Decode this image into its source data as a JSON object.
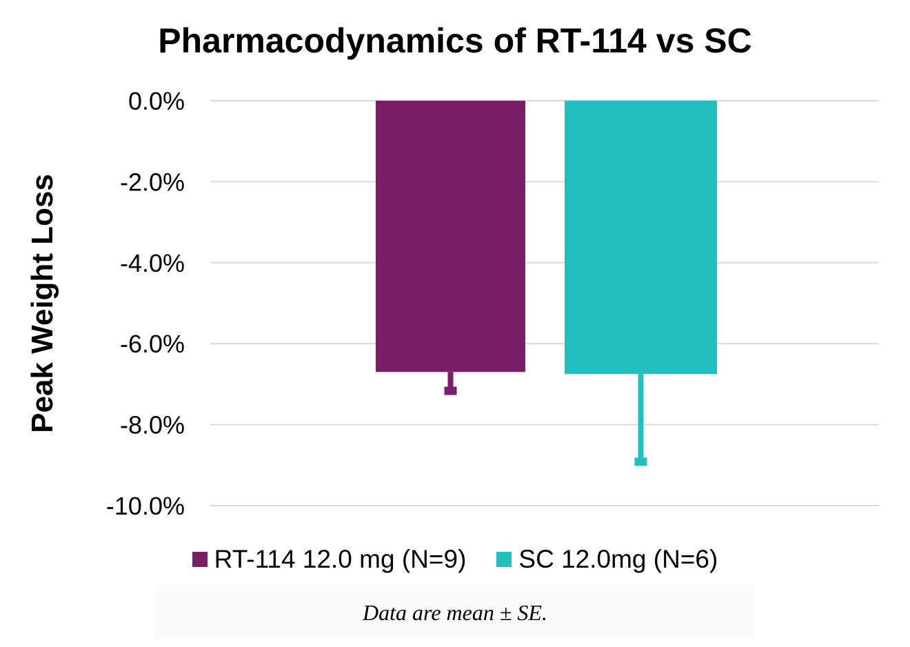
{
  "chart_data": {
    "type": "bar",
    "title": "Pharmacodynamics of RT-114 vs SC",
    "ylabel": "Peak Weight Loss",
    "xlabel": "",
    "ylim": [
      -10.0,
      0.0
    ],
    "yticks": [
      0.0,
      -2.0,
      -4.0,
      -6.0,
      -8.0,
      -10.0
    ],
    "ytick_labels": [
      "0.0%",
      "-2.0%",
      "-4.0%",
      "-6.0%",
      "-8.0%",
      "-10.0%"
    ],
    "grid": "horizontal",
    "legend_position": "bottom",
    "series": [
      {
        "name": "RT-114 12.0 mg (N=9)",
        "value": -6.7,
        "error": 0.5,
        "color": "#7b1e6a"
      },
      {
        "name": "SC 12.0mg (N=6)",
        "value": -6.75,
        "error": 2.2,
        "color": "#22bfc0"
      }
    ],
    "footnote": "Data are mean ± SE."
  }
}
